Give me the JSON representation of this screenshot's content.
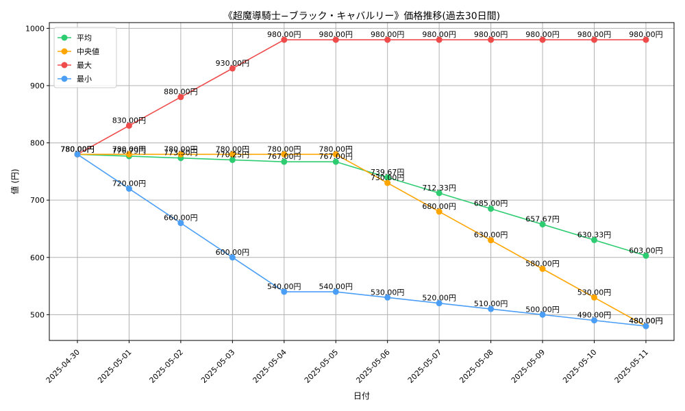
{
  "chart_data": {
    "type": "line",
    "title": "《超魔導騎士−ブラック・キャバルリー》価格推移(過去30日間)",
    "xlabel": "日付",
    "ylabel": "値 (円)",
    "categories": [
      "2025-04-30",
      "2025-05-01",
      "2025-05-02",
      "2025-05-03",
      "2025-05-04",
      "2025-05-05",
      "2025-05-06",
      "2025-05-07",
      "2025-05-08",
      "2025-05-09",
      "2025-05-10",
      "2025-05-11"
    ],
    "ylim": [
      455,
      1010
    ],
    "yticks": [
      500,
      600,
      700,
      800,
      900,
      1000
    ],
    "grid": true,
    "legend_position": "top-left",
    "value_suffix": "円",
    "series": [
      {
        "name": "平均",
        "color": "#2ecc71",
        "values": [
          780.0,
          776.79,
          773.5,
          770.25,
          767.0,
          767.0,
          739.67,
          712.33,
          685.0,
          657.67,
          630.33,
          603.0
        ]
      },
      {
        "name": "中央値",
        "color": "#ffa500",
        "values": [
          780.0,
          780.0,
          780.0,
          780.0,
          780.0,
          780.0,
          730.0,
          680.0,
          630.0,
          580.0,
          530.0,
          480.0
        ]
      },
      {
        "name": "最大",
        "color": "#ef4b4b",
        "values": [
          780.0,
          830.0,
          880.0,
          930.0,
          980.0,
          980.0,
          980.0,
          980.0,
          980.0,
          980.0,
          980.0,
          980.0
        ]
      },
      {
        "name": "最小",
        "color": "#4a9ef5",
        "values": [
          780.0,
          720.0,
          660.0,
          600.0,
          540.0,
          540.0,
          530.0,
          520.0,
          510.0,
          500.0,
          490.0,
          480.0
        ]
      }
    ]
  }
}
